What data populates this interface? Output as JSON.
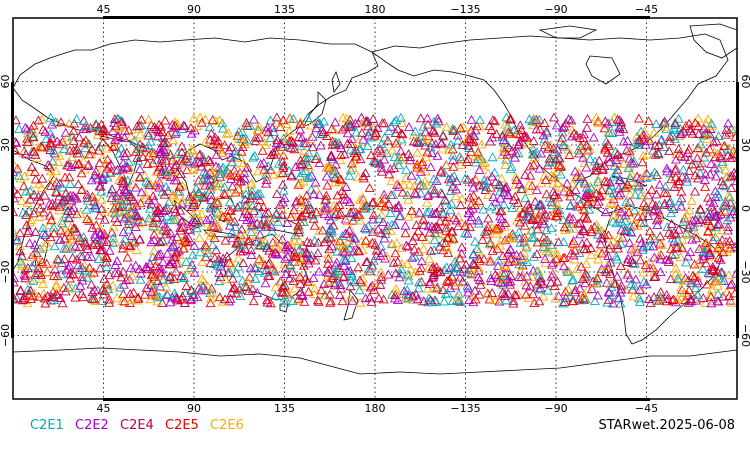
{
  "map": {
    "projection": "equirectangular",
    "lon_range": [
      0,
      360
    ],
    "lat_range": [
      -90,
      90
    ],
    "grid": "dotted",
    "lon_ticks": [
      {
        "lon": 45,
        "label": "45"
      },
      {
        "lon": 90,
        "label": "90"
      },
      {
        "lon": 135,
        "label": "135"
      },
      {
        "lon": 180,
        "label": "180"
      },
      {
        "lon": 225,
        "label": "−135"
      },
      {
        "lon": 270,
        "label": "−90"
      },
      {
        "lon": 315,
        "label": "−45"
      }
    ],
    "lat_ticks": [
      {
        "lat": 60,
        "label": "60"
      },
      {
        "lat": 30,
        "label": "30"
      },
      {
        "lat": 0,
        "label": "0"
      },
      {
        "lat": -30,
        "label": "−30"
      },
      {
        "lat": -60,
        "label": "−60"
      }
    ],
    "marker": "triangle",
    "observations_lat_range": [
      -45,
      43
    ]
  },
  "legend": [
    {
      "label": "C2E1",
      "color": "#00aabb"
    },
    {
      "label": "C2E2",
      "color": "#aa00cc"
    },
    {
      "label": "C2E4",
      "color": "#c00040"
    },
    {
      "label": "C2E5",
      "color": "#ee0000"
    },
    {
      "label": "C2E6",
      "color": "#ffaa00"
    }
  ],
  "stamp": "STARwet.2025-06-08"
}
